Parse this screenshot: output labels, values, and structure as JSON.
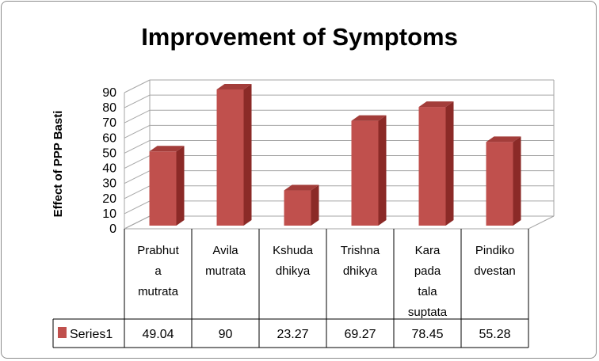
{
  "chart_data": {
    "type": "bar",
    "title": "Improvement of Symptoms",
    "xlabel": "",
    "ylabel": "Effect of PPP Basti",
    "ylim": [
      0,
      90
    ],
    "yticks": [
      0,
      10,
      20,
      30,
      40,
      50,
      60,
      70,
      80,
      90
    ],
    "categories": [
      "Prabhut a mutrata",
      "Avila mutrata",
      "Kshuda dhikya",
      "Trishna dhikya",
      "Kara pada tala suptata",
      "Pindiko dvestan"
    ],
    "category_lines": [
      [
        "Prabhut",
        "a",
        "mutrata"
      ],
      [
        "Avila",
        "mutrata"
      ],
      [
        "Kshuda",
        "dhikya"
      ],
      [
        "Trishna",
        "dhikya"
      ],
      [
        "Kara",
        "pada",
        "tala",
        "suptata"
      ],
      [
        "Pindiko",
        "dvestan"
      ]
    ],
    "series": [
      {
        "name": "Series1",
        "values": [
          49.04,
          90,
          23.27,
          69.27,
          78.45,
          55.28
        ],
        "labels": [
          "49.04",
          "90",
          "23.27",
          "69.27",
          "78.45",
          "55.28"
        ]
      }
    ],
    "data_table": true,
    "legend": "in data table",
    "grid": true,
    "colors": {
      "bar_front": "#c0504d",
      "bar_side": "#8b2a27",
      "bar_top": "#a33d3a",
      "grid": "#a6a6a6",
      "border": "#8c8c8c"
    }
  }
}
